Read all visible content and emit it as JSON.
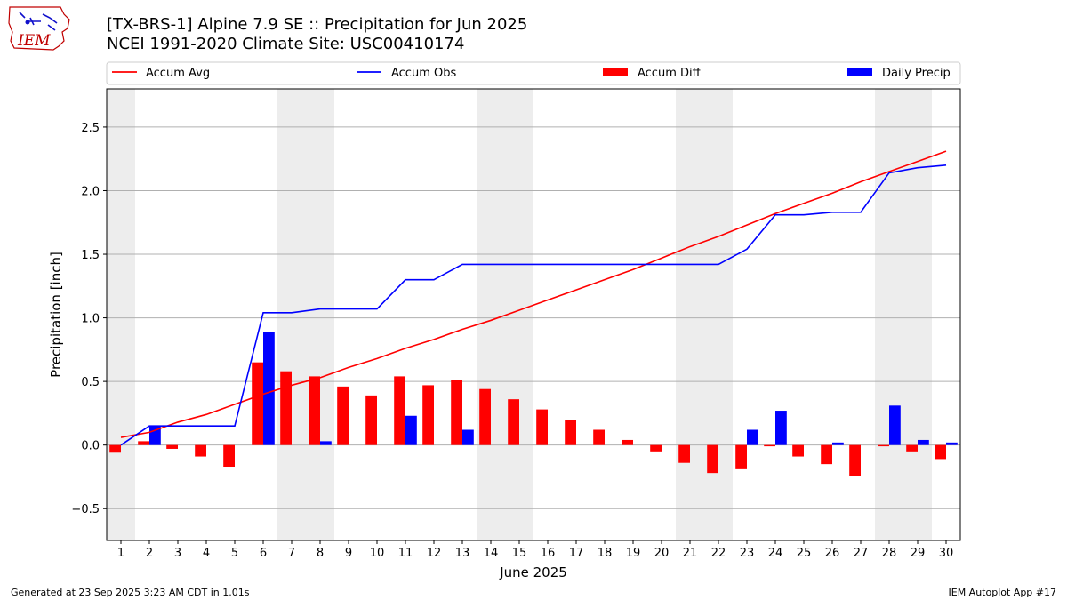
{
  "header": {
    "title_line1": "[TX-BRS-1] Alpine 7.9 SE :: Precipitation for Jun 2025",
    "title_line2": "NCEI 1991-2020 Climate Site: USC00410174",
    "logo_text": "IEM"
  },
  "footer": {
    "generated": "Generated at 23 Sep 2025 3:23 AM CDT in 1.01s",
    "app": "IEM Autoplot App #17"
  },
  "colors": {
    "avg": "#ff0000",
    "obs": "#0000ff",
    "diff": "#ff0000",
    "daily": "#0000ff",
    "weekend_band": "#ededed",
    "grid": "#b0b0b0"
  },
  "chart_data": {
    "type": "bar",
    "xlabel": "June 2025",
    "ylabel": "Precipitation [inch]",
    "ylim": [
      -0.75,
      2.8
    ],
    "xlim": [
      0.5,
      30.5
    ],
    "yticks": [
      -0.5,
      0.0,
      0.5,
      1.0,
      1.5,
      2.0,
      2.5
    ],
    "ytick_labels": [
      "−0.5",
      "0.0",
      "0.5",
      "1.0",
      "1.5",
      "2.0",
      "2.5"
    ],
    "grid": "horizontal",
    "legend_position": "top",
    "days": [
      1,
      2,
      3,
      4,
      5,
      6,
      7,
      8,
      9,
      10,
      11,
      12,
      13,
      14,
      15,
      16,
      17,
      18,
      19,
      20,
      21,
      22,
      23,
      24,
      25,
      26,
      27,
      28,
      29,
      30
    ],
    "shaded_days": [
      1,
      7,
      8,
      14,
      15,
      21,
      22,
      28,
      29
    ],
    "series": [
      {
        "name": "Accum Avg",
        "kind": "line",
        "values": [
          0.06,
          0.1,
          0.18,
          0.24,
          0.32,
          0.4,
          0.47,
          0.53,
          0.61,
          0.68,
          0.76,
          0.83,
          0.91,
          0.98,
          1.06,
          1.14,
          1.22,
          1.3,
          1.38,
          1.47,
          1.56,
          1.64,
          1.73,
          1.82,
          1.9,
          1.98,
          2.07,
          2.15,
          2.23,
          2.31
        ]
      },
      {
        "name": "Accum Obs",
        "kind": "line",
        "values": [
          0.0,
          0.15,
          0.15,
          0.15,
          0.15,
          1.04,
          1.04,
          1.07,
          1.07,
          1.07,
          1.3,
          1.3,
          1.42,
          1.42,
          1.42,
          1.42,
          1.42,
          1.42,
          1.42,
          1.42,
          1.42,
          1.42,
          1.54,
          1.81,
          1.81,
          1.83,
          1.83,
          2.14,
          2.18,
          2.2
        ]
      },
      {
        "name": "Accum Diff",
        "kind": "bar",
        "values": [
          -0.06,
          0.03,
          -0.03,
          -0.09,
          -0.17,
          0.65,
          0.58,
          0.54,
          0.46,
          0.39,
          0.54,
          0.47,
          0.51,
          0.44,
          0.36,
          0.28,
          0.2,
          0.12,
          0.04,
          -0.05,
          -0.14,
          -0.22,
          -0.19,
          -0.01,
          -0.09,
          -0.15,
          -0.24,
          -0.01,
          -0.05,
          -0.11
        ]
      },
      {
        "name": "Daily Precip",
        "kind": "bar",
        "values": [
          0.0,
          0.15,
          0.0,
          0.0,
          0.0,
          0.89,
          0.0,
          0.03,
          0.0,
          0.0,
          0.23,
          0.0,
          0.12,
          0.0,
          0.0,
          0.0,
          0.0,
          0.0,
          0.0,
          0.0,
          0.0,
          0.0,
          0.12,
          0.27,
          0.0,
          0.02,
          0.0,
          0.31,
          0.04,
          0.02
        ]
      }
    ]
  }
}
